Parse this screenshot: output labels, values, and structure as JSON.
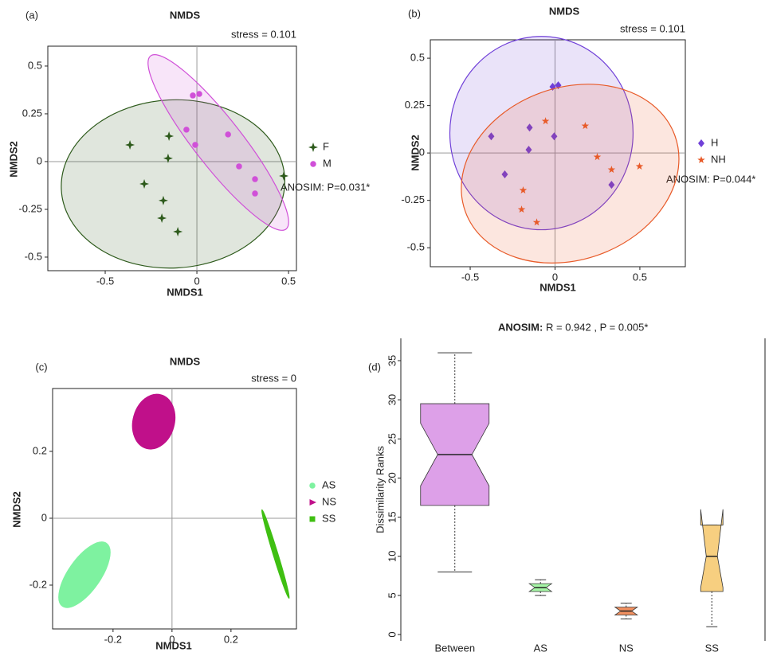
{
  "chart_data": [
    {
      "type": "scatter",
      "panel_label": "(a)",
      "title": "NMDS",
      "stress": "stress = 0.101",
      "xlabel": "NMDS1",
      "ylabel": "NMDS2",
      "anosim": "ANOSIM: P=0.031*",
      "xlim": [
        -0.813,
        0.543
      ],
      "ylim": [
        -0.571,
        0.604
      ],
      "xticks": [
        -0.5,
        0,
        0.5
      ],
      "yticks": [
        -0.5,
        -0.25,
        0,
        0.25,
        0.5
      ],
      "zero_lines": true,
      "series": [
        {
          "name": "F",
          "color": "#2d5a1b",
          "marker": "sparkle",
          "x": [
            -0.365,
            -0.152,
            -0.157,
            -0.287,
            -0.183,
            -0.191,
            -0.104,
            0.474
          ],
          "y": [
            0.0875,
            0.133,
            0.017,
            -0.117,
            -0.204,
            -0.296,
            -0.367,
            -0.075
          ],
          "ellipse": {
            "cx": -0.13,
            "cy": -0.117,
            "rx": 0.61,
            "ry": 0.44,
            "angle": -3
          }
        },
        {
          "name": "M",
          "color": "#d050d8",
          "marker": "circle",
          "x": [
            -0.022,
            0.013,
            -0.057,
            -0.009,
            0.17,
            0.23,
            0.317,
            0.317
          ],
          "y": [
            0.346,
            0.354,
            0.167,
            0.0875,
            0.142,
            -0.025,
            -0.092,
            -0.167
          ],
          "ellipse": {
            "cx": 0.117,
            "cy": 0.1,
            "rx": 0.6,
            "ry": 0.125,
            "angle": 52
          }
        }
      ]
    },
    {
      "type": "scatter",
      "panel_label": "(b)",
      "title": "NMDS",
      "stress": "stress = 0.101",
      "xlabel": "NMDS1",
      "ylabel": "NMDS2",
      "anosim": "ANOSIM: P=0.044*",
      "xlim": [
        -0.735,
        0.768
      ],
      "ylim": [
        -0.6,
        0.597
      ],
      "xticks": [
        -0.5,
        0,
        0.5
      ],
      "yticks": [
        -0.5,
        -0.25,
        0,
        0.25,
        0.5
      ],
      "zero_lines": true,
      "series": [
        {
          "name": "H",
          "color": "#7040d8",
          "marker": "diamond",
          "x": [
            -0.376,
            -0.15,
            -0.155,
            -0.296,
            -0.014,
            0.019,
            -0.005,
            0.333
          ],
          "y": [
            0.088,
            0.134,
            0.017,
            -0.113,
            0.349,
            0.357,
            0.088,
            -0.168
          ],
          "ellipse": {
            "cx": -0.08,
            "cy": 0.105,
            "rx": 0.54,
            "ry": 0.51,
            "angle": 0
          }
        },
        {
          "name": "NH",
          "color": "#e85a28",
          "marker": "star",
          "x": [
            -0.056,
            0.178,
            0.249,
            0.333,
            0.498,
            -0.188,
            -0.197,
            -0.108
          ],
          "y": [
            0.168,
            0.143,
            -0.021,
            -0.088,
            -0.071,
            -0.197,
            -0.298,
            -0.366
          ],
          "ellipse": {
            "cx": 0.089,
            "cy": -0.109,
            "rx": 0.657,
            "ry": 0.454,
            "angle": -20
          }
        }
      ]
    },
    {
      "type": "scatter",
      "panel_label": "(c)",
      "title": "NMDS",
      "stress": "stress = 0",
      "xlabel": "NMDS1",
      "ylabel": "NMDS2",
      "xlim": [
        -0.405,
        0.422
      ],
      "ylim": [
        -0.331,
        0.388
      ],
      "xticks": [
        -0.2,
        0,
        0.2
      ],
      "yticks": [
        -0.2,
        0,
        0.2
      ],
      "zero_lines": true,
      "series": [
        {
          "name": "AS",
          "color": "#7ef2a0",
          "marker": "circle",
          "ellipse": {
            "cx": -0.297,
            "cy": -0.169,
            "rx": 0.13,
            "ry": 0.048,
            "angle": -55
          }
        },
        {
          "name": "NS",
          "color": "#c0108a",
          "marker": "triangle",
          "ellipse": {
            "cx": -0.062,
            "cy": 0.289,
            "rx": 0.07,
            "ry": 0.083,
            "angle": 15
          }
        },
        {
          "name": "SS",
          "color": "#3fbf12",
          "marker": "square",
          "ellipse": {
            "cx": 0.351,
            "cy": -0.107,
            "rx": 0.157,
            "ry": 0.007,
            "angle": 73
          }
        }
      ]
    },
    {
      "type": "box",
      "panel_label": "(d)",
      "title": "ANOSIM:",
      "subtitle": "R = 0.942 ,  P = 0.005*",
      "ylabel": "Dissimilarity Ranks",
      "ylim": [
        -0.81,
        37.85
      ],
      "yticks": [
        0,
        5,
        10,
        15,
        20,
        25,
        30,
        35
      ],
      "categories": [
        "Between",
        "AS",
        "NS",
        "SS"
      ],
      "colors": [
        "#dda0e8",
        "#a6f5a6",
        "#f09060",
        "#f7cf80"
      ],
      "widths": [
        0.8,
        0.26,
        0.26,
        0.26
      ],
      "boxes": [
        {
          "low": 8,
          "q1": 16.5,
          "median": 23,
          "q3": 29.5,
          "high": 36,
          "notch": [
            19,
            27
          ]
        },
        {
          "low": 5,
          "q1": 5.5,
          "median": 6,
          "q3": 6.5,
          "high": 7,
          "notch": [
            5.5,
            6.5
          ]
        },
        {
          "low": 2,
          "q1": 2.5,
          "median": 3,
          "q3": 3.5,
          "high": 4,
          "notch": [
            2.5,
            3.5
          ]
        },
        {
          "low": 1,
          "q1": 5.5,
          "median": 10,
          "q3": 14,
          "high": 14,
          "notch": [
            6,
            16
          ]
        }
      ]
    }
  ]
}
